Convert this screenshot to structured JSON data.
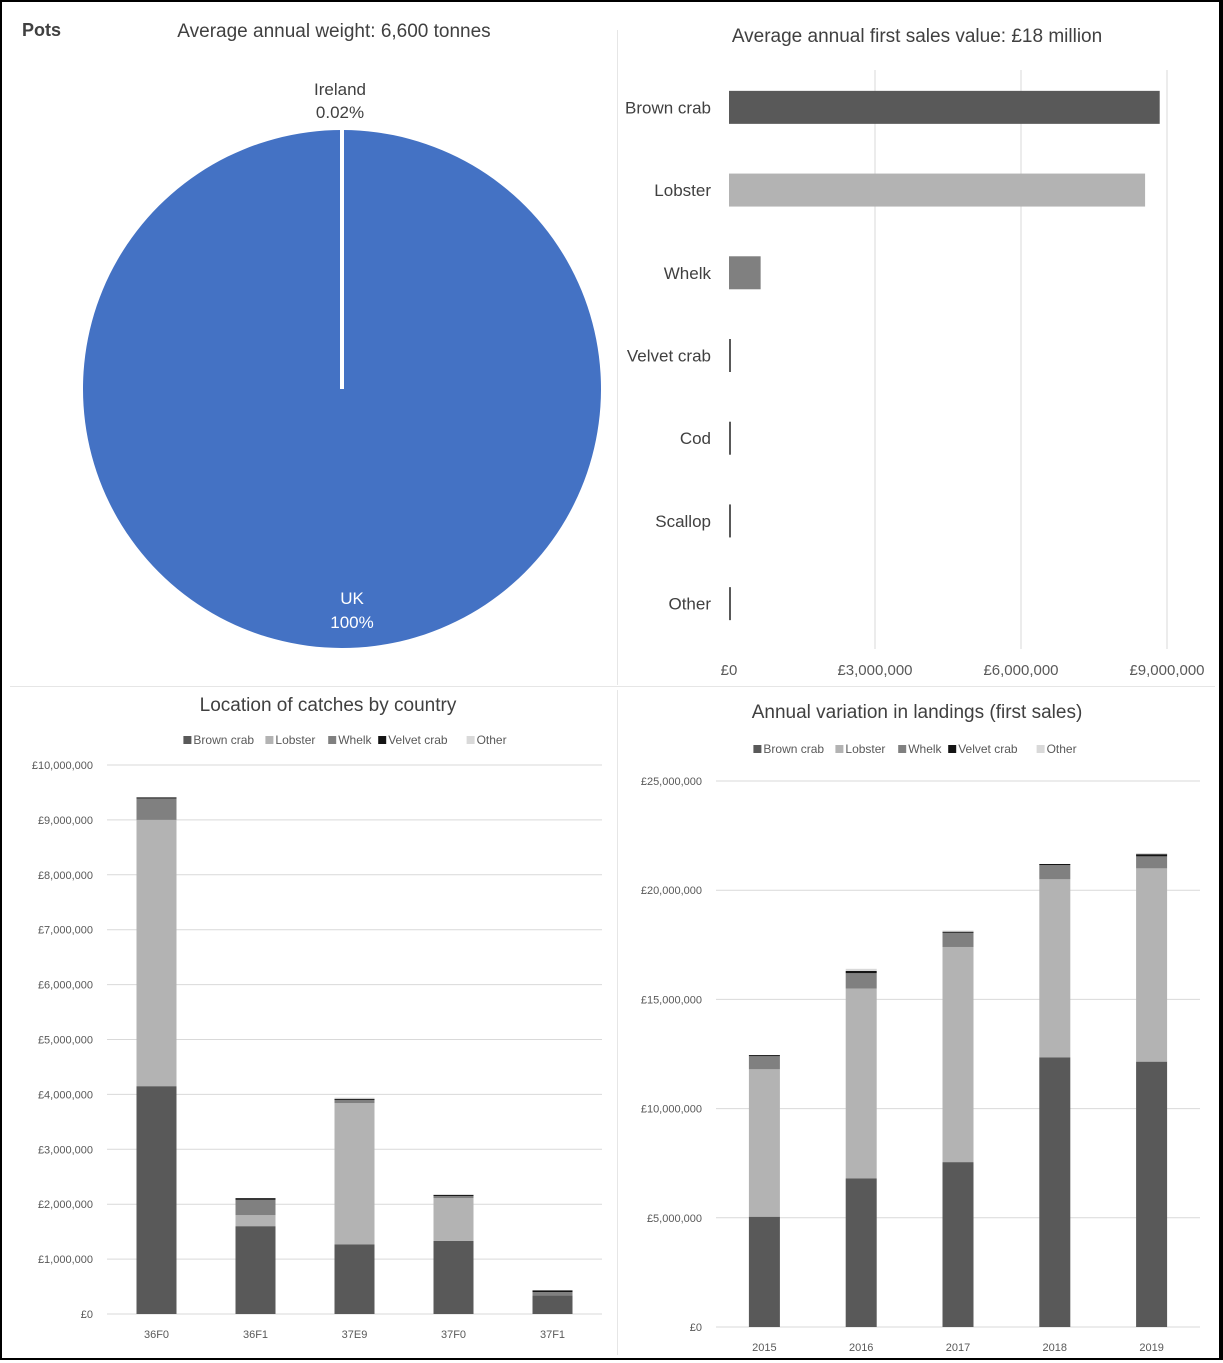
{
  "header": {
    "label": "Pots"
  },
  "colors": {
    "brown_crab": "#595959",
    "lobster": "#b3b3b3",
    "whelk": "#808080",
    "velvet_crab": "#141414",
    "other": "#d9d9d9",
    "pie_uk": "#4472c4",
    "grid": "#d9d9d9"
  },
  "chart_data": [
    {
      "type": "pie",
      "title": "Average annual weight: 6,600 tonnes",
      "slices": [
        {
          "name": "Ireland",
          "label": "0.02%",
          "value": 0.02
        },
        {
          "name": "UK",
          "label": "100%",
          "value": 99.98
        }
      ]
    },
    {
      "type": "bar",
      "orientation": "horizontal",
      "title": "Average annual first sales value: £18 million",
      "categories": [
        "Brown crab",
        "Lobster",
        "Whelk",
        "Velvet crab",
        "Cod",
        "Scallop",
        "Other"
      ],
      "values": [
        8850000,
        8550000,
        650000,
        30000,
        20000,
        15000,
        15000
      ],
      "xlim": [
        0,
        9000000
      ],
      "xticks": [
        "£0",
        "£3,000,000",
        "£6,000,000",
        "£9,000,000"
      ],
      "grid": "vertical"
    },
    {
      "type": "bar",
      "stacked": true,
      "title": "Location of catches by country",
      "legend_position": "top",
      "categories": [
        "36F0",
        "36F1",
        "37E9",
        "37F0",
        "37F1"
      ],
      "series": [
        {
          "name": "Brown crab",
          "values": [
            4150000,
            1600000,
            1270000,
            1330000,
            340000
          ]
        },
        {
          "name": "Lobster",
          "values": [
            4850000,
            200000,
            2570000,
            780000,
            0
          ]
        },
        {
          "name": "Whelk",
          "values": [
            400000,
            280000,
            60000,
            40000,
            60000
          ]
        },
        {
          "name": "Velvet crab",
          "values": [
            10000,
            30000,
            20000,
            20000,
            30000
          ]
        },
        {
          "name": "Other",
          "values": [
            0,
            0,
            20000,
            0,
            0
          ]
        }
      ],
      "ylim": [
        0,
        10000000
      ],
      "yticks": [
        "£0",
        "£1,000,000",
        "£2,000,000",
        "£3,000,000",
        "£4,000,000",
        "£5,000,000",
        "£6,000,000",
        "£7,000,000",
        "£8,000,000",
        "£9,000,000",
        "£10,000,000"
      ],
      "grid": "horizontal"
    },
    {
      "type": "bar",
      "stacked": true,
      "title": "Annual variation in landings (first sales)",
      "legend_position": "top",
      "categories": [
        "2015",
        "2016",
        "2017",
        "2018",
        "2019"
      ],
      "series": [
        {
          "name": "Brown crab",
          "values": [
            5050000,
            6800000,
            7550000,
            12350000,
            12150000
          ]
        },
        {
          "name": "Lobster",
          "values": [
            6750000,
            8700000,
            9850000,
            8150000,
            8850000
          ]
        },
        {
          "name": "Whelk",
          "values": [
            600000,
            700000,
            650000,
            650000,
            550000
          ]
        },
        {
          "name": "Velvet crab",
          "values": [
            50000,
            100000,
            50000,
            50000,
            100000
          ]
        },
        {
          "name": "Other",
          "values": [
            0,
            100000,
            50000,
            0,
            50000
          ]
        }
      ],
      "ylim": [
        0,
        25000000
      ],
      "yticks": [
        "£0",
        "£5,000,000",
        "£10,000,000",
        "£15,000,000",
        "£20,000,000",
        "£25,000,000"
      ],
      "grid": "horizontal"
    }
  ]
}
